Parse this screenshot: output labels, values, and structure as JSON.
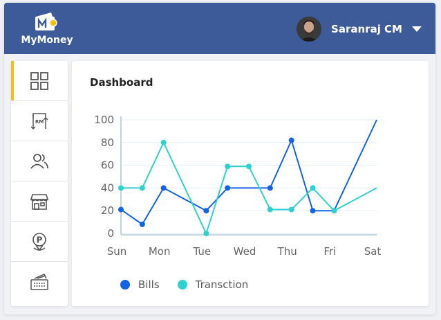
{
  "app": {
    "brand": "MyMoney",
    "user_name": "Saranraj CM"
  },
  "sidebar": {
    "items": [
      {
        "icon": "dashboard-grid-icon",
        "active": true
      },
      {
        "icon": "rm-transfer-icon",
        "label": "RM",
        "active": false
      },
      {
        "icon": "users-icon",
        "active": false
      },
      {
        "icon": "store-icon",
        "active": false
      },
      {
        "icon": "parking-location-icon",
        "label": "P",
        "active": false
      },
      {
        "icon": "tickets-icon",
        "active": false
      }
    ]
  },
  "main": {
    "title": "Dashboard"
  },
  "colors": {
    "header": "#3d5a99",
    "accent": "#f4c20d",
    "bills": "#1463e6",
    "transaction": "#2fd1cf"
  },
  "chart_data": {
    "type": "line",
    "x": [
      "Sun",
      "",
      "Mon",
      "",
      "Tue",
      "",
      "Wed",
      "",
      "Thu",
      "",
      "Fri",
      "",
      "Sat"
    ],
    "categories": [
      "Sun",
      "Mon",
      "Tue",
      "Wed",
      "Thu",
      "Fri",
      "Sat"
    ],
    "yticks": [
      0,
      20,
      40,
      60,
      80,
      100
    ],
    "ylim": [
      0,
      100
    ],
    "grid": "horizontal",
    "legend": "bottom-left",
    "series": [
      {
        "name": "Bills",
        "color": "#1463e6",
        "values": [
          21,
          8,
          40,
          null,
          20,
          40,
          null,
          40,
          82,
          20,
          20,
          null,
          100
        ],
        "markers": [
          true,
          true,
          true,
          false,
          true,
          true,
          false,
          true,
          true,
          true,
          true,
          false,
          false
        ]
      },
      {
        "name": "Transction",
        "color": "#2fd1cf",
        "values": [
          40,
          40,
          80,
          null,
          0,
          59,
          59,
          21,
          21,
          40,
          20,
          null,
          40
        ],
        "markers": [
          true,
          true,
          true,
          false,
          true,
          true,
          true,
          true,
          true,
          true,
          true,
          false,
          false
        ]
      }
    ]
  }
}
